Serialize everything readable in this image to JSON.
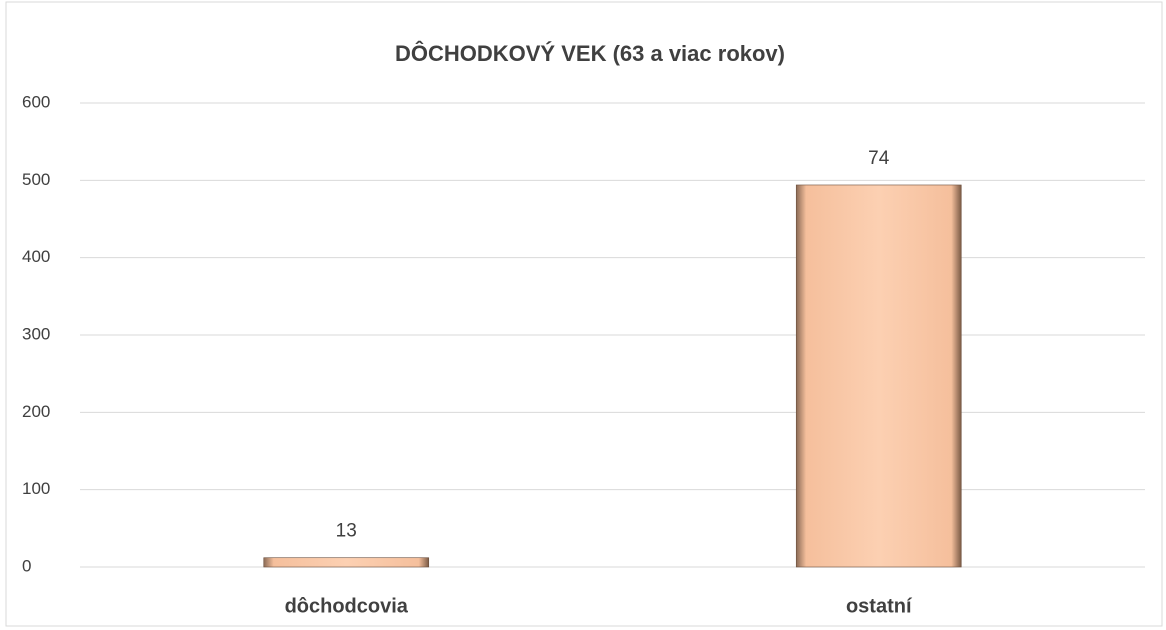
{
  "chart_data": {
    "type": "bar",
    "title": "DÔCHODKOVÝ VEK (63 a viac rokov)",
    "categories": [
      "dôchodcovia",
      "ostatní"
    ],
    "values": [
      12,
      494
    ],
    "color": "#f9c4a0",
    "annotations": [
      "13",
      "74"
    ],
    "ylim": [
      0,
      600
    ],
    "yticks": [
      0,
      100,
      200,
      300,
      400,
      500,
      600
    ],
    "grid": true
  }
}
